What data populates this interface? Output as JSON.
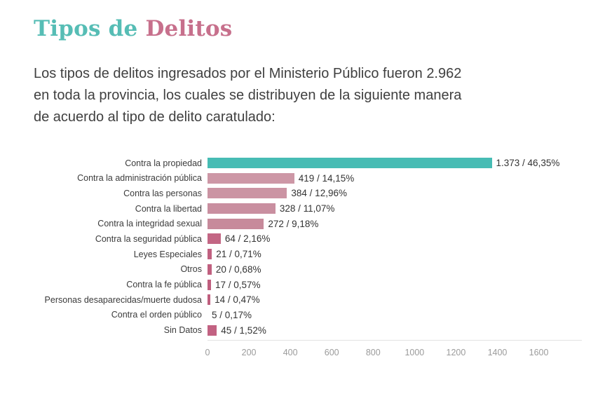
{
  "page": {
    "title": {
      "part1": "Tipos de ",
      "part2": "Delitos"
    },
    "intro_lines": [
      "Los tipos de delitos ingresados por el Ministerio Público fueron 2.962",
      "en toda la provincia, los cuales se distribuyen de la siguiente manera",
      "de acuerdo al tipo de delito caratulado:"
    ]
  },
  "colors": {
    "title_teal": "#56bdb5",
    "title_pink": "#c7708c",
    "body_text": "#404040",
    "category_text": "#3b3b3b",
    "value_text": "#333333",
    "tick_text": "#9b9b9b",
    "axis_line": "#e2e2e2",
    "background": "#ffffff"
  },
  "chart_data": {
    "type": "bar",
    "orientation": "horizontal",
    "title": "",
    "xlabel": "",
    "ylabel": "",
    "grid": false,
    "legend": false,
    "xlim": [
      0,
      1808
    ],
    "x_ticks": [
      0,
      200,
      400,
      600,
      800,
      1000,
      1200,
      1400,
      1600
    ],
    "categories": [
      "Contra la propiedad",
      "Contra la administración pública",
      "Contra las personas",
      "Contra la libertad",
      "Contra la integridad sexual",
      "Contra la seguridad pública",
      "Leyes Especiales",
      "Otros",
      "Contra la fe pública",
      "Personas desaparecidas/muerte dudosa",
      "Contra el orden público",
      "Sin Datos"
    ],
    "values": [
      1373,
      419,
      384,
      328,
      272,
      64,
      21,
      20,
      17,
      14,
      5,
      45
    ],
    "value_labels": [
      "1.373 / 46,35%",
      "419 / 14,15%",
      "384 / 12,96%",
      "328 / 11,07%",
      "272 / 9,18%",
      "64 / 2,16%",
      "21 / 0,71%",
      "20 / 0,68%",
      "17 / 0,57%",
      "14 / 0,47%",
      "5 / 0,17%",
      "45 / 1,52%"
    ],
    "bar_colors": [
      "#47bcb4",
      "#cd97a6",
      "#cb94a3",
      "#c98fa0",
      "#c78a9b",
      "#c36684",
      "#c06080",
      "#c05f7f",
      "#bf5e7e",
      "#bf5e7e",
      "#bf5d7d",
      "#c26282"
    ]
  }
}
